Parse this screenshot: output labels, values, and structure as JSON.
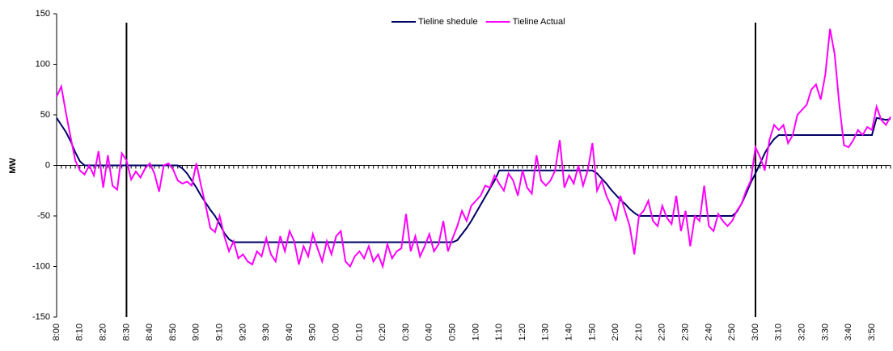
{
  "chart_data": {
    "type": "line",
    "y_label": "MW",
    "categories": [
      "8:00",
      null,
      null,
      null,
      null,
      "8:10",
      null,
      null,
      null,
      null,
      "8:20",
      null,
      null,
      null,
      null,
      "8:30",
      null,
      null,
      null,
      null,
      "8:40",
      null,
      null,
      null,
      null,
      "8:50",
      null,
      null,
      null,
      null,
      "9:00",
      null,
      null,
      null,
      null,
      "9:10",
      null,
      null,
      null,
      null,
      "9:20",
      null,
      null,
      null,
      null,
      "9:30",
      null,
      null,
      null,
      null,
      "9:40",
      null,
      null,
      null,
      null,
      "9:50",
      null,
      null,
      null,
      null,
      "0:00",
      null,
      null,
      null,
      null,
      "0:10",
      null,
      null,
      null,
      null,
      "0:20",
      null,
      null,
      null,
      null,
      "0:30",
      null,
      null,
      null,
      null,
      "0:40",
      null,
      null,
      null,
      null,
      "0:50",
      null,
      null,
      null,
      null,
      "1:00",
      null,
      null,
      null,
      null,
      "1:10",
      null,
      null,
      null,
      null,
      "1:20",
      null,
      null,
      null,
      null,
      "1:30",
      null,
      null,
      null,
      null,
      "1:40",
      null,
      null,
      null,
      null,
      "1:50",
      null,
      null,
      null,
      null,
      "2:00",
      null,
      null,
      null,
      null,
      "2:10",
      null,
      null,
      null,
      null,
      "2:20",
      null,
      null,
      null,
      null,
      "2:30",
      null,
      null,
      null,
      null,
      "2:40",
      null,
      null,
      null,
      null,
      "2:50",
      null,
      null,
      null,
      null,
      "3:00",
      null,
      null,
      null,
      null,
      "3:10",
      null,
      null,
      null,
      null,
      "3:20",
      null,
      null,
      null,
      null,
      "3:30",
      null,
      null,
      null,
      null,
      "3:40",
      null,
      null,
      null,
      null,
      "3:50",
      null,
      null,
      null,
      null
    ],
    "series": [
      {
        "name": "Tieline shedule",
        "color": "#000066",
        "values": [
          47,
          40,
          33,
          24,
          13,
          4,
          0,
          0,
          0,
          0,
          0,
          0,
          0,
          0,
          0,
          0,
          0,
          0,
          0,
          0,
          0,
          0,
          0,
          0,
          0,
          0,
          0,
          -3,
          -8,
          -15,
          -22,
          -30,
          -37,
          -44,
          -50,
          -58,
          -67,
          -73,
          -76,
          -76,
          -76,
          -76,
          -76,
          -76,
          -76,
          -76,
          -76,
          -76,
          -76,
          -76,
          -76,
          -76,
          -76,
          -76,
          -76,
          -76,
          -76,
          -76,
          -76,
          -76,
          -76,
          -76,
          -76,
          -76,
          -76,
          -76,
          -76,
          -76,
          -76,
          -76,
          -76,
          -76,
          -76,
          -76,
          -76,
          -76,
          -76,
          -76,
          -76,
          -76,
          -76,
          -76,
          -76,
          -76,
          -76,
          -76,
          -74,
          -68,
          -62,
          -55,
          -47,
          -39,
          -31,
          -23,
          -15,
          -5,
          -5,
          -5,
          -5,
          -5,
          -5,
          -5,
          -5,
          -5,
          -5,
          -5,
          -5,
          -5,
          -5,
          -5,
          -5,
          -5,
          -5,
          -5,
          -5,
          -5,
          -8,
          -13,
          -18,
          -24,
          -29,
          -34,
          -38,
          -43,
          -47,
          -50,
          -50,
          -50,
          -50,
          -50,
          -50,
          -50,
          -50,
          -50,
          -50,
          -50,
          -50,
          -50,
          -50,
          -50,
          -50,
          -50,
          -50,
          -50,
          -50,
          -50,
          -46,
          -38,
          -28,
          -17,
          -8,
          2,
          12,
          20,
          26,
          30,
          30,
          30,
          30,
          30,
          30,
          30,
          30,
          30,
          30,
          30,
          30,
          30,
          30,
          30,
          30,
          30,
          30,
          30,
          30,
          30,
          47,
          46,
          45,
          46
        ]
      },
      {
        "name": "Tieline Actual",
        "color": "#ff00ff",
        "values": [
          68,
          78,
          52,
          28,
          5,
          -5,
          -9,
          0,
          -10,
          14,
          -22,
          10,
          -20,
          -24,
          12,
          5,
          -14,
          -6,
          -12,
          -3,
          2,
          -8,
          -26,
          0,
          2,
          -4,
          -15,
          -18,
          -16,
          -20,
          2,
          -20,
          -40,
          -62,
          -66,
          -50,
          -70,
          -85,
          -75,
          -92,
          -88,
          -95,
          -98,
          -85,
          -90,
          -72,
          -88,
          -95,
          -70,
          -85,
          -65,
          -75,
          -98,
          -80,
          -90,
          -68,
          -82,
          -95,
          -75,
          -88,
          -70,
          -65,
          -95,
          -100,
          -90,
          -85,
          -92,
          -80,
          -95,
          -88,
          -100,
          -78,
          -92,
          -85,
          -82,
          -48,
          -85,
          -70,
          -90,
          -80,
          -68,
          -85,
          -78,
          -55,
          -85,
          -72,
          -60,
          -45,
          -55,
          -40,
          -35,
          -30,
          -20,
          -22,
          -10,
          -18,
          -25,
          -8,
          -15,
          -30,
          -5,
          -22,
          -28,
          10,
          -15,
          -20,
          -15,
          -5,
          25,
          -22,
          -10,
          -18,
          0,
          -20,
          -5,
          22,
          -25,
          -15,
          -30,
          -40,
          -55,
          -30,
          -45,
          -60,
          -88,
          -50,
          -45,
          -35,
          -55,
          -60,
          -40,
          -52,
          -58,
          -30,
          -65,
          -45,
          -80,
          -50,
          -55,
          -20,
          -60,
          -65,
          -48,
          -55,
          -60,
          -55,
          -45,
          -38,
          -25,
          -15,
          18,
          8,
          -5,
          25,
          40,
          35,
          40,
          22,
          30,
          50,
          55,
          60,
          75,
          80,
          65,
          90,
          135,
          110,
          60,
          20,
          18,
          25,
          35,
          30,
          38,
          35,
          58,
          45,
          40,
          48
        ]
      }
    ],
    "vertical_lines": [
      "8:30",
      "3:00"
    ],
    "ylim": [
      -150,
      150
    ],
    "yticks": [
      -150,
      -100,
      -50,
      0,
      50,
      100,
      150
    ]
  }
}
